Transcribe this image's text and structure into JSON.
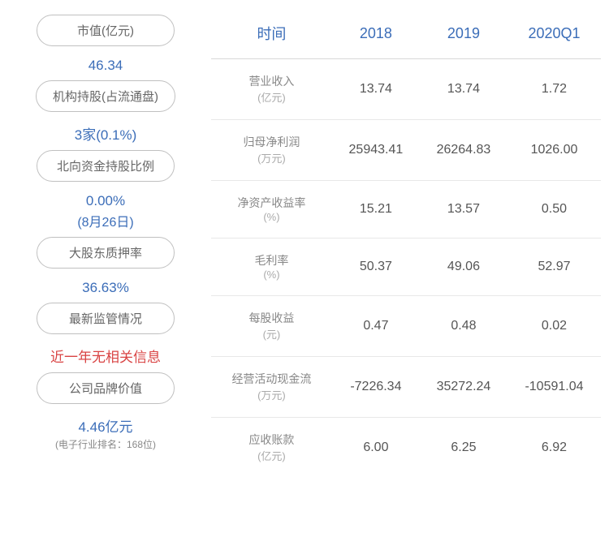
{
  "left": {
    "items": [
      {
        "label": "市值(亿元)",
        "value": "46.34",
        "sub": "",
        "note": "",
        "color": "blue"
      },
      {
        "label": "机构持股(占流通盘)",
        "value": "3家(0.1%)",
        "sub": "",
        "note": "",
        "color": "blue"
      },
      {
        "label": "北向资金持股比例",
        "value": "0.00%",
        "sub": "(8月26日)",
        "note": "",
        "color": "blue"
      },
      {
        "label": "大股东质押率",
        "value": "36.63%",
        "sub": "",
        "note": "",
        "color": "blue"
      },
      {
        "label": "最新监管情况",
        "value": "近一年无相关信息",
        "sub": "",
        "note": "",
        "color": "red"
      },
      {
        "label": "公司品牌价值",
        "value": "4.46亿元",
        "sub": "",
        "note": "(电子行业排名：168位)",
        "color": "blue"
      }
    ]
  },
  "table": {
    "headers": [
      "时间",
      "2018",
      "2019",
      "2020Q1"
    ],
    "rows": [
      {
        "label": "营业收入",
        "unit": "(亿元)",
        "v2018": "13.74",
        "v2019": "13.74",
        "v2020q1": "1.72"
      },
      {
        "label": "归母净利润",
        "unit": "(万元)",
        "v2018": "25943.41",
        "v2019": "26264.83",
        "v2020q1": "1026.00"
      },
      {
        "label": "净资产收益率",
        "unit": "(%)",
        "v2018": "15.21",
        "v2019": "13.57",
        "v2020q1": "0.50"
      },
      {
        "label": "毛利率",
        "unit": "(%)",
        "v2018": "50.37",
        "v2019": "49.06",
        "v2020q1": "52.97"
      },
      {
        "label": "每股收益",
        "unit": "(元)",
        "v2018": "0.47",
        "v2019": "0.48",
        "v2020q1": "0.02"
      },
      {
        "label": "经营活动现金流",
        "unit": "(万元)",
        "v2018": "-7226.34",
        "v2019": "35272.24",
        "v2020q1": "-10591.04"
      },
      {
        "label": "应收账款",
        "unit": "(亿元)",
        "v2018": "6.00",
        "v2019": "6.25",
        "v2020q1": "6.92"
      }
    ]
  },
  "style": {
    "pill_border_color": "#c0c0c0",
    "pill_text_color": "#666666",
    "value_color_blue": "#3b6db8",
    "value_color_red": "#d94444",
    "header_color": "#3b6db8",
    "cell_text_color": "#555555",
    "row_label_color": "#888888",
    "border_color": "#d8d8d8",
    "background_color": "#ffffff"
  }
}
